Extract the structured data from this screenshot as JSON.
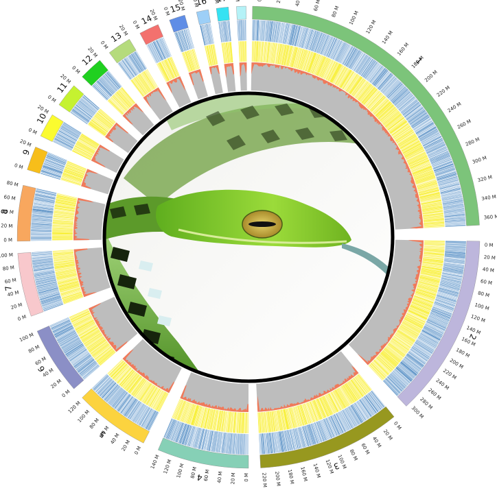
{
  "diagram": {
    "chromosomes": [
      {
        "name": "1",
        "color": "#7cc47a",
        "ticks": [
          "0 M",
          "20 M",
          "40 M",
          "60 M",
          "80 M",
          "100 M",
          "120 M",
          "140 M",
          "160 M",
          "180 M",
          "200 M",
          "220 M",
          "240 M",
          "260 M",
          "280 M",
          "300 M",
          "320 M",
          "340 M",
          "360 M"
        ]
      },
      {
        "name": "2",
        "color": "#bdb6dc",
        "ticks": [
          "0 M",
          "20 M",
          "40 M",
          "60 M",
          "80 M",
          "100 M",
          "120 M",
          "140 M",
          "160 M",
          "180 M",
          "200 M",
          "220 M",
          "240 M",
          "260 M",
          "280 M",
          "300 M"
        ]
      },
      {
        "name": "3",
        "color": "#97981f",
        "ticks": [
          "0 M",
          "20 M",
          "40 M",
          "60 M",
          "80 M",
          "100 M",
          "120 M",
          "140 M",
          "160 M",
          "180 M",
          "200 M",
          "220 M"
        ]
      },
      {
        "name": "4",
        "color": "#86d0b6",
        "ticks": [
          "0 M",
          "20 M",
          "40 M",
          "60 M",
          "80 M",
          "100 M",
          "120 M",
          "140 M"
        ]
      },
      {
        "name": "5",
        "color": "#fcd33f",
        "ticks": [
          "0 M",
          "20 M",
          "40 M",
          "60 M",
          "80 M",
          "100 M",
          "120 M"
        ]
      },
      {
        "name": "6",
        "color": "#8b8fc6",
        "ticks": [
          "0 M",
          "20 M",
          "40 M",
          "60 M",
          "80 M",
          "100 M"
        ]
      },
      {
        "name": "7",
        "color": "#f8c8cc",
        "ticks": [
          "0 M",
          "20 M",
          "40 M",
          "60 M",
          "80 M",
          "100 M"
        ]
      },
      {
        "name": "8",
        "color": "#f8a75e",
        "ticks": [
          "0 M",
          "20 M",
          "40 M",
          "60 M",
          "80 M"
        ]
      },
      {
        "name": "9",
        "color": "#f7be1a",
        "ticks": [
          "0 M",
          "20 M"
        ]
      },
      {
        "name": "10",
        "color": "#fbfb2f",
        "ticks": [
          "0 M",
          "20 M"
        ]
      },
      {
        "name": "11",
        "color": "#c5f230",
        "ticks": [
          "0 M",
          "20 M"
        ]
      },
      {
        "name": "12",
        "color": "#20d020",
        "ticks": [
          "0 M",
          "20 M"
        ]
      },
      {
        "name": "13",
        "color": "#b5db7c",
        "ticks": [
          "0 M",
          "20 M"
        ]
      },
      {
        "name": "14",
        "color": "#f3716e",
        "ticks": [
          "0 M",
          "20 M"
        ]
      },
      {
        "name": "15",
        "color": "#5f8de6",
        "ticks": [
          "0 M",
          "20 M"
        ]
      },
      {
        "name": "16",
        "color": "#9dcff7",
        "ticks": [
          "0 M"
        ]
      },
      {
        "name": "17",
        "color": "#35e2f2",
        "ticks": [
          "0 M"
        ]
      },
      {
        "name": "18",
        "color": "#b5f2f7",
        "ticks": [
          "0 M"
        ]
      }
    ],
    "track_colors": {
      "gene_density": "#4a86bf",
      "repeat_density": "#f7ee2a",
      "gc_fill": "#f07a5a",
      "gc_background": "#bdbdbd",
      "center_ring": "#000000"
    },
    "center_image": "green vine snake head photograph"
  }
}
